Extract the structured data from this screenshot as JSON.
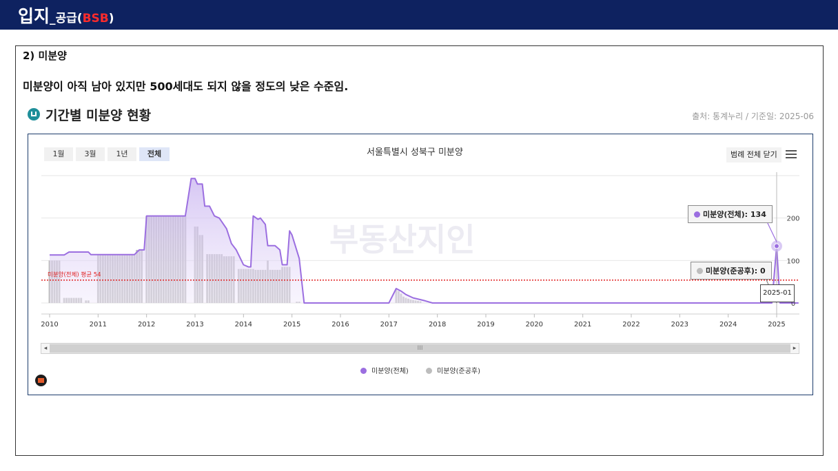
{
  "header": {
    "title_main": "입지",
    "title_sub": "_공급",
    "title_open": "(",
    "title_accent": "BSB",
    "title_close": ")"
  },
  "section": {
    "title": "2) 미분양",
    "summary": "미분양이 아직 남아 있지만 500세대도 되지 않을 정도의 낮은 수준임."
  },
  "chart_panel": {
    "heading": "기간별 미분양 현황",
    "source": "출처: 통계누리 / 기준일: 2025-06",
    "range_buttons": [
      "1월",
      "3월",
      "1년",
      "전체"
    ],
    "active_range": "전체",
    "legend_close": "범례 전체 닫기",
    "watermark": "부동산지인",
    "scroll_label": "III",
    "home_icon": "home-icon",
    "menu_icon": "hamburger-menu-icon"
  },
  "tooltips": {
    "total": "미분양(전체): 134",
    "completed": "미분양(준공후): 0",
    "date": "2025-01"
  },
  "colors": {
    "header_bg": "#0e2260",
    "accent_red": "#ff2b2b",
    "total_series": "#9b6ee0",
    "completed_series": "#bdbdbd",
    "average_line": "#e02020"
  },
  "chart_data": {
    "type": "area",
    "title": "서울특별시 성북구 미분양",
    "xlabel": "",
    "ylabel": "",
    "x_ticks": [
      "2010",
      "2011",
      "2012",
      "2013",
      "2014",
      "2015",
      "2016",
      "2017",
      "2018",
      "2019",
      "2020",
      "2021",
      "2022",
      "2023",
      "2024",
      "2025"
    ],
    "xlim": [
      2010,
      2025.45
    ],
    "y_ticks": [
      0,
      100,
      200
    ],
    "ylim": [
      0,
      300
    ],
    "grid": true,
    "legend_position": "bottom",
    "average_line": {
      "value": 54,
      "label": "미분양(전체) 평균 54"
    },
    "series": [
      {
        "name": "미분양(전체)",
        "color": "#9b6ee0",
        "points": [
          [
            2010.0,
            113
          ],
          [
            2010.3,
            113
          ],
          [
            2010.4,
            120
          ],
          [
            2010.8,
            120
          ],
          [
            2010.85,
            114
          ],
          [
            2011.0,
            114
          ],
          [
            2011.75,
            114
          ],
          [
            2011.85,
            125
          ],
          [
            2011.95,
            125
          ],
          [
            2012.0,
            205
          ],
          [
            2012.8,
            205
          ],
          [
            2012.92,
            293
          ],
          [
            2013.0,
            293
          ],
          [
            2013.05,
            280
          ],
          [
            2013.15,
            280
          ],
          [
            2013.2,
            228
          ],
          [
            2013.3,
            228
          ],
          [
            2013.4,
            205
          ],
          [
            2013.5,
            200
          ],
          [
            2013.65,
            175
          ],
          [
            2013.75,
            140
          ],
          [
            2013.85,
            125
          ],
          [
            2014.0,
            90
          ],
          [
            2014.1,
            85
          ],
          [
            2014.15,
            85
          ],
          [
            2014.2,
            205
          ],
          [
            2014.3,
            197
          ],
          [
            2014.35,
            200
          ],
          [
            2014.45,
            185
          ],
          [
            2014.5,
            135
          ],
          [
            2014.65,
            135
          ],
          [
            2014.75,
            125
          ],
          [
            2014.8,
            90
          ],
          [
            2014.9,
            90
          ],
          [
            2014.95,
            170
          ],
          [
            2015.0,
            160
          ],
          [
            2015.15,
            105
          ],
          [
            2015.25,
            0
          ],
          [
            2016.2,
            0
          ],
          [
            2017.0,
            0
          ],
          [
            2017.15,
            34
          ],
          [
            2017.25,
            28
          ],
          [
            2017.35,
            20
          ],
          [
            2017.5,
            12
          ],
          [
            2017.65,
            8
          ],
          [
            2017.75,
            5
          ],
          [
            2017.9,
            0
          ],
          [
            2024.9,
            0
          ],
          [
            2025.0,
            134
          ],
          [
            2025.07,
            0
          ],
          [
            2025.45,
            0
          ]
        ]
      },
      {
        "name": "미분양(준공후)",
        "color": "#bdbdbd",
        "bars": [
          [
            2010.0,
            100
          ],
          [
            2010.05,
            100
          ],
          [
            2010.1,
            100
          ],
          [
            2010.15,
            100
          ],
          [
            2010.2,
            100
          ],
          [
            2010.3,
            12
          ],
          [
            2010.35,
            12
          ],
          [
            2010.4,
            12
          ],
          [
            2010.45,
            12
          ],
          [
            2010.5,
            12
          ],
          [
            2010.55,
            12
          ],
          [
            2010.6,
            12
          ],
          [
            2010.65,
            12
          ],
          [
            2010.75,
            6
          ],
          [
            2010.8,
            6
          ],
          [
            2011.0,
            114
          ],
          [
            2011.05,
            114
          ],
          [
            2011.1,
            114
          ],
          [
            2011.15,
            114
          ],
          [
            2011.2,
            114
          ],
          [
            2011.25,
            114
          ],
          [
            2011.3,
            114
          ],
          [
            2011.35,
            114
          ],
          [
            2011.4,
            114
          ],
          [
            2011.45,
            114
          ],
          [
            2011.5,
            114
          ],
          [
            2011.55,
            114
          ],
          [
            2011.6,
            114
          ],
          [
            2011.65,
            114
          ],
          [
            2011.7,
            114
          ],
          [
            2011.75,
            114
          ],
          [
            2011.8,
            125
          ],
          [
            2011.85,
            125
          ],
          [
            2011.9,
            125
          ],
          [
            2012.0,
            205
          ],
          [
            2012.05,
            205
          ],
          [
            2012.1,
            205
          ],
          [
            2012.15,
            205
          ],
          [
            2012.2,
            205
          ],
          [
            2012.25,
            205
          ],
          [
            2012.3,
            205
          ],
          [
            2012.35,
            205
          ],
          [
            2012.4,
            205
          ],
          [
            2012.45,
            205
          ],
          [
            2012.5,
            205
          ],
          [
            2012.55,
            205
          ],
          [
            2012.6,
            205
          ],
          [
            2012.65,
            205
          ],
          [
            2012.7,
            205
          ],
          [
            2012.75,
            205
          ],
          [
            2012.8,
            205
          ],
          [
            2013.0,
            180
          ],
          [
            2013.05,
            180
          ],
          [
            2013.1,
            160
          ],
          [
            2013.15,
            160
          ],
          [
            2013.25,
            115
          ],
          [
            2013.3,
            115
          ],
          [
            2013.35,
            115
          ],
          [
            2013.4,
            115
          ],
          [
            2013.45,
            115
          ],
          [
            2013.5,
            115
          ],
          [
            2013.55,
            115
          ],
          [
            2013.6,
            110
          ],
          [
            2013.65,
            110
          ],
          [
            2013.7,
            110
          ],
          [
            2013.75,
            110
          ],
          [
            2013.8,
            110
          ],
          [
            2013.9,
            80
          ],
          [
            2013.95,
            80
          ],
          [
            2014.0,
            80
          ],
          [
            2014.05,
            80
          ],
          [
            2014.1,
            80
          ],
          [
            2014.15,
            80
          ],
          [
            2014.2,
            80
          ],
          [
            2014.25,
            78
          ],
          [
            2014.3,
            78
          ],
          [
            2014.35,
            78
          ],
          [
            2014.4,
            78
          ],
          [
            2014.45,
            78
          ],
          [
            2014.5,
            100
          ],
          [
            2014.55,
            78
          ],
          [
            2014.6,
            78
          ],
          [
            2014.65,
            78
          ],
          [
            2014.7,
            78
          ],
          [
            2014.75,
            78
          ],
          [
            2014.8,
            85
          ],
          [
            2014.85,
            85
          ],
          [
            2014.9,
            85
          ],
          [
            2014.95,
            85
          ],
          [
            2015.1,
            3
          ],
          [
            2015.15,
            3
          ],
          [
            2017.15,
            34
          ],
          [
            2017.2,
            28
          ],
          [
            2017.25,
            22
          ],
          [
            2017.3,
            15
          ],
          [
            2017.35,
            12
          ],
          [
            2017.4,
            10
          ],
          [
            2017.45,
            8
          ],
          [
            2017.5,
            7
          ],
          [
            2017.55,
            6
          ],
          [
            2017.6,
            5
          ],
          [
            2017.65,
            4
          ]
        ]
      }
    ]
  }
}
